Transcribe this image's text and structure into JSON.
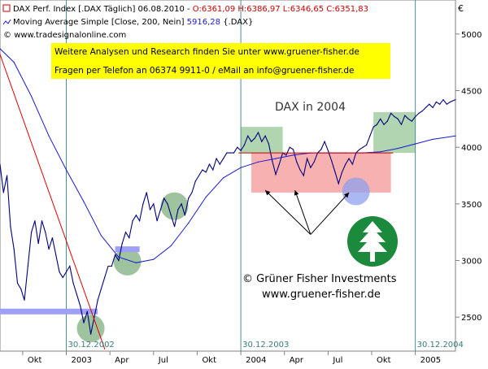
{
  "header": {
    "line1_prefix": "DAX Perf. Index [.DAX  Täglich] 06.08.2010 - ",
    "line1_values": "O:6361,09 H:6386,97 L:6346,65 C:6351,83",
    "line2_prefix": "Moving Average Simple [Close, 200, Nein] ",
    "line2_value": "5916,28",
    "line2_suffix": " {.DAX}",
    "line3": "www.tradesignalonline.com",
    "price_color": "#cc0000",
    "ma_color": "#1a1ad0"
  },
  "banner": {
    "line1": "Weitere Analysen und Research finden Sie unter www.gruener-fisher.de",
    "line2": "Fragen per Telefon an 06374 9911-0 / eMail an info@gruener-fisher.de",
    "background": "#ffff00"
  },
  "chart_title": "DAX in 2004",
  "brand": {
    "copyright": "© Grüner Fisher Investments",
    "url": "www.gruener-fisher.de",
    "logo_color": "#1b8a3c",
    "logo_icon": "tree-logo-icon"
  },
  "currency_label": "€",
  "date_marks": [
    "30.12.2002",
    "30.12.2003",
    "30.12.2004"
  ],
  "chart_data": {
    "type": "line",
    "title": "DAX in 2004",
    "y_axis_side": "right",
    "yticks": [
      2500,
      3000,
      3500,
      4000,
      4500,
      5000
    ],
    "ylim": [
      2200,
      5300
    ],
    "xlim": [
      2002.62,
      2005.23
    ],
    "xticks": [
      {
        "x": 2002.75,
        "label": "Okt"
      },
      {
        "x": 2003.0,
        "label": "2003"
      },
      {
        "x": 2003.25,
        "label": "Apr"
      },
      {
        "x": 2003.5,
        "label": "Jul"
      },
      {
        "x": 2003.75,
        "label": "Okt"
      },
      {
        "x": 2004.0,
        "label": "2004"
      },
      {
        "x": 2004.25,
        "label": "Apr"
      },
      {
        "x": 2004.5,
        "label": "Jul"
      },
      {
        "x": 2004.75,
        "label": "Okt"
      },
      {
        "x": 2005.0,
        "label": "2005"
      }
    ],
    "vertical_markers": [
      2003.0,
      2004.0,
      2005.0
    ],
    "series": [
      {
        "name": "DAX Perf. Index",
        "color": "#00007a",
        "points": [
          [
            2002.62,
            3850
          ],
          [
            2002.64,
            3600
          ],
          [
            2002.66,
            3750
          ],
          [
            2002.68,
            3300
          ],
          [
            2002.7,
            3100
          ],
          [
            2002.72,
            2800
          ],
          [
            2002.74,
            2750
          ],
          [
            2002.76,
            2650
          ],
          [
            2002.78,
            2950
          ],
          [
            2002.8,
            3250
          ],
          [
            2002.82,
            3350
          ],
          [
            2002.84,
            3150
          ],
          [
            2002.86,
            3350
          ],
          [
            2002.88,
            3250
          ],
          [
            2002.9,
            3100
          ],
          [
            2002.92,
            3200
          ],
          [
            2002.94,
            3050
          ],
          [
            2002.96,
            2900
          ],
          [
            2002.98,
            2850
          ],
          [
            2003.0,
            2900
          ],
          [
            2003.02,
            2950
          ],
          [
            2003.04,
            2800
          ],
          [
            2003.06,
            2700
          ],
          [
            2003.08,
            2600
          ],
          [
            2003.1,
            2450
          ],
          [
            2003.12,
            2550
          ],
          [
            2003.14,
            2350
          ],
          [
            2003.16,
            2500
          ],
          [
            2003.18,
            2650
          ],
          [
            2003.2,
            2750
          ],
          [
            2003.22,
            2850
          ],
          [
            2003.24,
            2950
          ],
          [
            2003.26,
            2950
          ],
          [
            2003.28,
            3050
          ],
          [
            2003.3,
            3000
          ],
          [
            2003.32,
            3150
          ],
          [
            2003.34,
            3250
          ],
          [
            2003.36,
            3200
          ],
          [
            2003.38,
            3350
          ],
          [
            2003.4,
            3400
          ],
          [
            2003.42,
            3350
          ],
          [
            2003.44,
            3500
          ],
          [
            2003.46,
            3600
          ],
          [
            2003.48,
            3450
          ],
          [
            2003.5,
            3500
          ],
          [
            2003.52,
            3350
          ],
          [
            2003.54,
            3450
          ],
          [
            2003.56,
            3550
          ],
          [
            2003.58,
            3500
          ],
          [
            2003.6,
            3400
          ],
          [
            2003.62,
            3300
          ],
          [
            2003.64,
            3450
          ],
          [
            2003.66,
            3500
          ],
          [
            2003.68,
            3400
          ],
          [
            2003.7,
            3550
          ],
          [
            2003.72,
            3600
          ],
          [
            2003.74,
            3700
          ],
          [
            2003.76,
            3750
          ],
          [
            2003.78,
            3800
          ],
          [
            2003.8,
            3780
          ],
          [
            2003.82,
            3850
          ],
          [
            2003.84,
            3800
          ],
          [
            2003.86,
            3900
          ],
          [
            2003.88,
            3850
          ],
          [
            2003.9,
            3900
          ],
          [
            2003.92,
            3950
          ],
          [
            2003.94,
            3950
          ],
          [
            2003.96,
            3950
          ],
          [
            2003.98,
            4000
          ],
          [
            2004.0,
            3970
          ],
          [
            2004.02,
            4020
          ],
          [
            2004.04,
            4100
          ],
          [
            2004.06,
            4050
          ],
          [
            2004.08,
            4080
          ],
          [
            2004.1,
            4130
          ],
          [
            2004.12,
            4050
          ],
          [
            2004.14,
            4100
          ],
          [
            2004.16,
            4030
          ],
          [
            2004.18,
            3880
          ],
          [
            2004.2,
            3760
          ],
          [
            2004.22,
            3850
          ],
          [
            2004.24,
            3950
          ],
          [
            2004.26,
            3930
          ],
          [
            2004.28,
            4000
          ],
          [
            2004.3,
            3980
          ],
          [
            2004.32,
            3870
          ],
          [
            2004.34,
            3800
          ],
          [
            2004.36,
            3750
          ],
          [
            2004.38,
            3900
          ],
          [
            2004.4,
            3820
          ],
          [
            2004.42,
            3870
          ],
          [
            2004.44,
            3950
          ],
          [
            2004.46,
            3980
          ],
          [
            2004.48,
            4050
          ],
          [
            2004.5,
            3970
          ],
          [
            2004.52,
            3880
          ],
          [
            2004.54,
            3780
          ],
          [
            2004.56,
            3680
          ],
          [
            2004.58,
            3780
          ],
          [
            2004.6,
            3850
          ],
          [
            2004.62,
            3900
          ],
          [
            2004.64,
            3850
          ],
          [
            2004.66,
            3950
          ],
          [
            2004.68,
            3980
          ],
          [
            2004.7,
            4000
          ],
          [
            2004.72,
            4020
          ],
          [
            2004.74,
            4100
          ],
          [
            2004.76,
            4180
          ],
          [
            2004.78,
            4200
          ],
          [
            2004.8,
            4250
          ],
          [
            2004.82,
            4200
          ],
          [
            2004.84,
            4230
          ],
          [
            2004.86,
            4300
          ],
          [
            2004.88,
            4270
          ],
          [
            2004.9,
            4250
          ],
          [
            2004.92,
            4200
          ],
          [
            2004.94,
            4280
          ],
          [
            2004.96,
            4250
          ],
          [
            2004.98,
            4230
          ],
          [
            2005.0,
            4270
          ],
          [
            2005.02,
            4300
          ],
          [
            2005.04,
            4320
          ],
          [
            2005.06,
            4350
          ],
          [
            2005.08,
            4380
          ],
          [
            2005.1,
            4350
          ],
          [
            2005.12,
            4400
          ],
          [
            2005.14,
            4380
          ],
          [
            2005.16,
            4420
          ],
          [
            2005.18,
            4380
          ],
          [
            2005.2,
            4400
          ],
          [
            2005.23,
            4420
          ]
        ]
      },
      {
        "name": "Moving Average Simple [Close, 200, Nein]",
        "color": "#1a1ad0",
        "points": [
          [
            2002.62,
            4870
          ],
          [
            2002.7,
            4750
          ],
          [
            2002.8,
            4450
          ],
          [
            2002.9,
            4100
          ],
          [
            2003.0,
            3800
          ],
          [
            2003.1,
            3520
          ],
          [
            2003.2,
            3220
          ],
          [
            2003.3,
            3030
          ],
          [
            2003.4,
            2980
          ],
          [
            2003.5,
            3010
          ],
          [
            2003.6,
            3130
          ],
          [
            2003.7,
            3330
          ],
          [
            2003.8,
            3560
          ],
          [
            2003.9,
            3730
          ],
          [
            2004.0,
            3820
          ],
          [
            2004.1,
            3870
          ],
          [
            2004.2,
            3900
          ],
          [
            2004.3,
            3930
          ],
          [
            2004.4,
            3950
          ],
          [
            2004.5,
            3950
          ],
          [
            2004.6,
            3950
          ],
          [
            2004.7,
            3950
          ],
          [
            2004.8,
            3960
          ],
          [
            2004.9,
            3990
          ],
          [
            2005.0,
            4030
          ],
          [
            2005.1,
            4070
          ],
          [
            2005.23,
            4100
          ]
        ]
      },
      {
        "name": "Trendline",
        "color": "#e00000",
        "points": [
          [
            2002.62,
            4820
          ],
          [
            2003.22,
            2220
          ]
        ]
      },
      {
        "name": "Resistance",
        "color": "#cc0000",
        "points": [
          [
            2003.99,
            3950
          ],
          [
            2004.87,
            3950
          ]
        ]
      }
    ],
    "highlight_boxes": [
      {
        "x0": 2004.06,
        "x1": 2004.86,
        "y0": 3600,
        "y1": 3950,
        "color": "#f7a9a9"
      },
      {
        "x0": 2004.0,
        "x1": 2004.24,
        "y0": 3950,
        "y1": 4180,
        "color": "#a8cfa8"
      },
      {
        "x0": 2004.76,
        "x1": 2005.0,
        "y0": 3950,
        "y1": 4310,
        "color": "#a8cfa8"
      }
    ],
    "support_lines": [
      {
        "x0": 2002.62,
        "x1": 2003.18,
        "y": 2550
      },
      {
        "x0": 2003.28,
        "x1": 2003.42,
        "y": 3100
      }
    ],
    "circles": [
      {
        "x": 2003.14,
        "y": 2400,
        "color": "#7fae7f"
      },
      {
        "x": 2003.35,
        "y": 2990,
        "color": "#7fae7f"
      },
      {
        "x": 2003.62,
        "y": 3480,
        "color": "#7fae7f"
      },
      {
        "x": 2004.66,
        "y": 3610,
        "color": "#8fa0ee"
      }
    ],
    "arrows": {
      "origin": [
        2004.4,
        3230
      ],
      "targets": [
        [
          2004.14,
          3620
        ],
        [
          2004.31,
          3620
        ],
        [
          2004.62,
          3600
        ]
      ]
    }
  }
}
